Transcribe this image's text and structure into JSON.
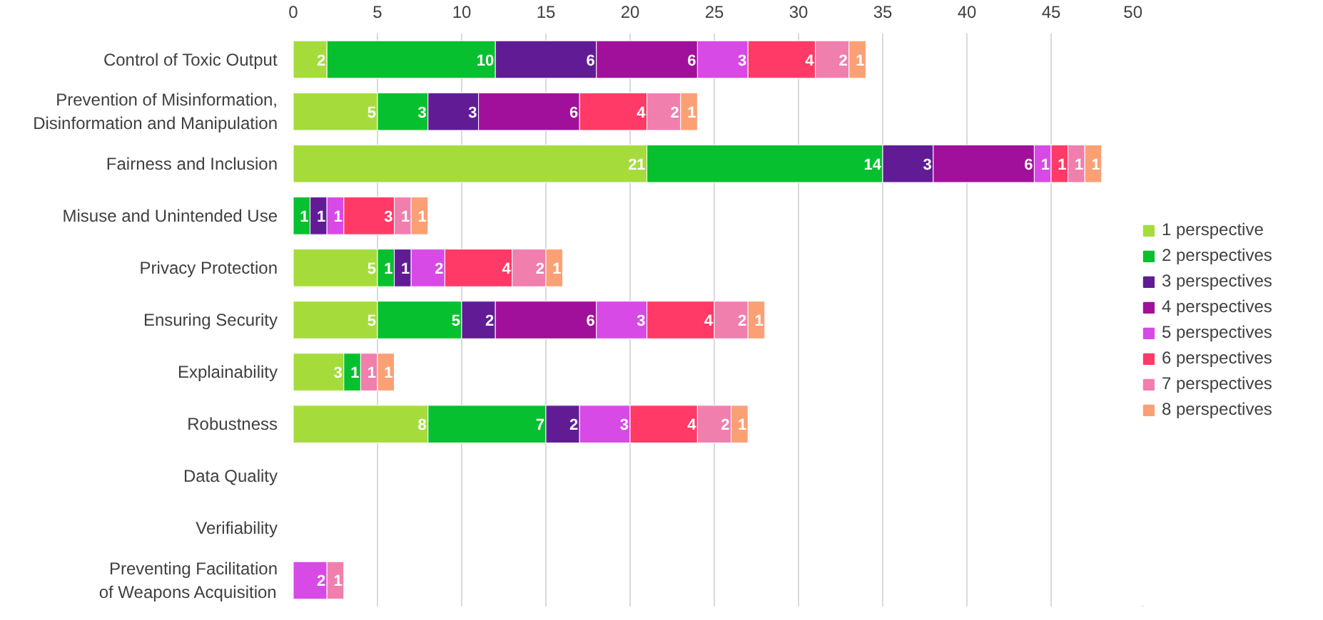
{
  "chart_data": {
    "type": "bar",
    "orientation": "horizontal",
    "stacked": true,
    "data_labels": true,
    "grid": "x",
    "legend": "right",
    "categories": [
      "Control of Toxic Output",
      "Prevention of Misinformation,\nDisinformation and Manipulation",
      "Fairness and Inclusion",
      "Misuse and Unintended Use",
      "Privacy Protection",
      "Ensuring Security",
      "Explainability",
      "Robustness",
      "Data Quality",
      "Verifiability",
      "Preventing Facilitation\nof Weapons Acquisition"
    ],
    "xlim": [
      0,
      50
    ],
    "xticks": [
      0,
      5,
      10,
      15,
      20,
      25,
      30,
      35,
      40,
      45,
      50
    ],
    "series": [
      {
        "name": "1 perspective",
        "color": "#a5dc3c",
        "values": [
          2,
          5,
          21,
          null,
          5,
          5,
          3,
          8,
          null,
          null,
          null
        ]
      },
      {
        "name": "2 perspectives",
        "color": "#07c02f",
        "values": [
          10,
          3,
          14,
          1,
          1,
          5,
          1,
          7,
          null,
          null,
          null
        ]
      },
      {
        "name": "3 perspectives",
        "color": "#611c95",
        "values": [
          6,
          3,
          3,
          1,
          1,
          2,
          null,
          2,
          null,
          null,
          null
        ]
      },
      {
        "name": "4 perspectives",
        "color": "#a1109a",
        "values": [
          6,
          6,
          6,
          null,
          null,
          6,
          null,
          null,
          null,
          null,
          null
        ]
      },
      {
        "name": "5 perspectives",
        "color": "#d84ae6",
        "values": [
          3,
          null,
          1,
          1,
          2,
          3,
          null,
          3,
          null,
          null,
          2
        ]
      },
      {
        "name": "6 perspectives",
        "color": "#ff3a66",
        "values": [
          4,
          4,
          1,
          3,
          4,
          4,
          null,
          4,
          null,
          null,
          null
        ]
      },
      {
        "name": "7 perspectives",
        "color": "#f07fae",
        "values": [
          2,
          2,
          1,
          1,
          2,
          2,
          1,
          2,
          null,
          null,
          1
        ]
      },
      {
        "name": "8 perspectives",
        "color": "#fba075",
        "values": [
          1,
          1,
          1,
          1,
          1,
          1,
          1,
          1,
          null,
          null,
          null
        ]
      }
    ]
  }
}
